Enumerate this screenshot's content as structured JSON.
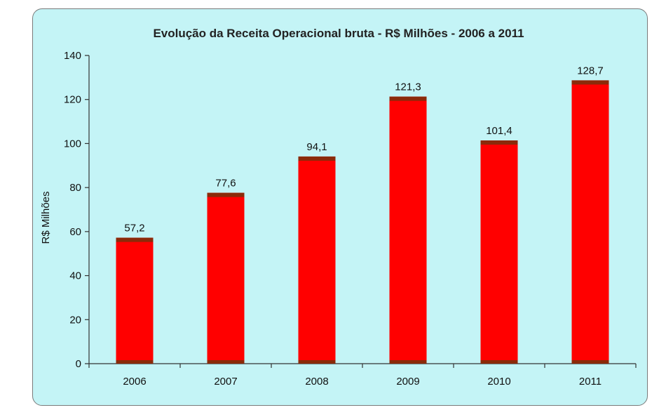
{
  "chart_data": {
    "type": "bar",
    "title": "Evolução da Receita Operacional bruta - R$ Milhões - 2006 a 2011",
    "xlabel": "",
    "ylabel": "R$ Milhões",
    "categories": [
      "2006",
      "2007",
      "2008",
      "2009",
      "2010",
      "2011"
    ],
    "values": [
      57.2,
      77.6,
      94.1,
      121.3,
      101.4,
      128.7
    ],
    "data_labels": [
      "57,2",
      "77,6",
      "94,1",
      "121,3",
      "101,4",
      "128,7"
    ],
    "ylim": [
      0,
      140
    ],
    "yticks": [
      0,
      20,
      40,
      60,
      80,
      100,
      120,
      140
    ],
    "grid": false,
    "legend": "none",
    "colors": {
      "bar": "#ff0000",
      "bar_cap": "#8b2a0a",
      "background": "#c4f4f6",
      "border": "#7a7a7a"
    }
  }
}
